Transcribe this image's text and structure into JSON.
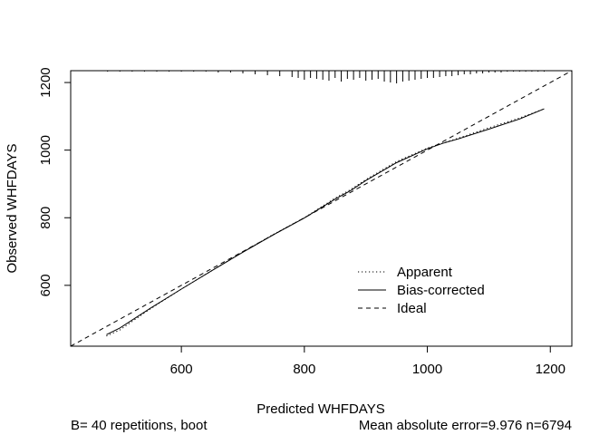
{
  "chart_data": {
    "type": "line",
    "xlabel": "Predicted WHFDAYS",
    "ylabel": "Observed WHFDAYS",
    "xlim": [
      420,
      1235
    ],
    "ylim": [
      420,
      1235
    ],
    "xticks": [
      600,
      800,
      1000,
      1200
    ],
    "yticks": [
      600,
      800,
      1000,
      1200
    ],
    "grid": false,
    "legend_position": "bottom-right",
    "series": [
      {
        "name": "Apparent",
        "style": "dotted",
        "color": "#000000",
        "x": [
          478,
          500,
          550,
          600,
          650,
          700,
          750,
          800,
          850,
          875,
          900,
          950,
          1000,
          1025,
          1050,
          1100,
          1150,
          1190
        ],
        "y": [
          450,
          468,
          531,
          589,
          644,
          699,
          751,
          800,
          858,
          883,
          913,
          966,
          1006,
          1021,
          1035,
          1066,
          1095,
          1122
        ]
      },
      {
        "name": "Bias-corrected",
        "style": "solid",
        "color": "#000000",
        "x": [
          478,
          500,
          550,
          600,
          650,
          700,
          750,
          800,
          850,
          875,
          900,
          950,
          1000,
          1025,
          1050,
          1100,
          1150,
          1190
        ],
        "y": [
          454,
          474,
          533,
          589,
          644,
          698,
          750,
          799,
          855,
          880,
          910,
          963,
          1004,
          1020,
          1033,
          1062,
          1092,
          1122
        ]
      },
      {
        "name": "Ideal",
        "style": "dashed",
        "color": "#000000",
        "x": [
          420,
          1235
        ],
        "y": [
          420,
          1235
        ]
      }
    ],
    "rug_x": [
      480,
      500,
      520,
      540,
      560,
      580,
      600,
      620,
      640,
      660,
      680,
      700,
      720,
      740,
      760,
      780,
      790,
      800,
      810,
      820,
      830,
      840,
      850,
      860,
      870,
      880,
      890,
      900,
      910,
      920,
      930,
      940,
      950,
      960,
      970,
      980,
      990,
      1000,
      1010,
      1020,
      1030,
      1040,
      1050,
      1060,
      1070,
      1080,
      1090,
      1100,
      1110,
      1120,
      1130,
      1140,
      1150,
      1160,
      1170,
      1180,
      1190
    ],
    "rug_len": [
      1,
      1,
      1,
      1,
      1,
      1,
      1,
      1,
      1,
      2,
      2,
      3,
      4,
      5,
      6,
      7,
      8,
      10,
      8,
      9,
      10,
      11,
      8,
      12,
      9,
      10,
      8,
      11,
      10,
      9,
      12,
      13,
      14,
      12,
      11,
      10,
      9,
      8,
      8,
      7,
      6,
      6,
      5,
      4,
      4,
      3,
      3,
      2,
      2,
      2,
      1,
      1,
      1,
      1,
      1,
      1,
      1
    ]
  },
  "footer": {
    "left": "B= 40 repetitions, boot",
    "right": "Mean absolute error=9.976 n=6794"
  }
}
